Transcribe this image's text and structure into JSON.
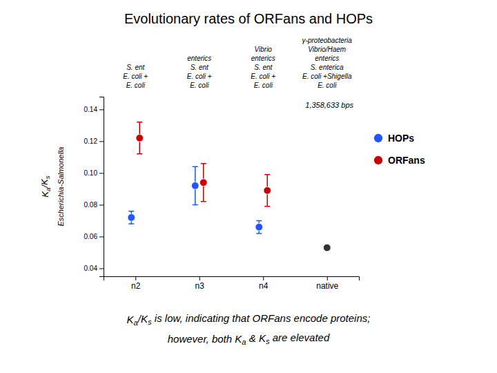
{
  "chart_data": {
    "type": "scatter",
    "title": "Evolutionary rates of ORFans and HOPs",
    "ylabel": [
      "Ka/Ks",
      "Escherichia-Salmonella"
    ],
    "categories": [
      "n2",
      "n3",
      "n4",
      "native"
    ],
    "series": [
      {
        "name": "HOPs",
        "color": "#2255ff",
        "marker": "circle",
        "values": [
          0.072,
          0.092,
          0.066,
          null
        ],
        "errors": [
          0.004,
          0.012,
          0.004,
          null
        ]
      },
      {
        "name": "ORFans",
        "color": "#cc0000",
        "marker": "circle",
        "values": [
          0.122,
          0.094,
          0.089,
          null
        ],
        "errors": [
          0.01,
          0.012,
          0.01,
          null
        ]
      },
      {
        "color": "#333333",
        "marker": "circle",
        "values": [
          null,
          null,
          null,
          0.053
        ]
      }
    ],
    "ylim": [
      0.035,
      0.148
    ],
    "yticks": [
      0.04,
      0.06,
      0.08,
      {
        "value": 0.1,
        "label": "0.10"
      },
      0.12,
      0.14
    ],
    "column_headers": [
      [
        null,
        null,
        null,
        "γ-proteobacteria"
      ],
      [
        null,
        null,
        "Vibrio",
        "Vibrio/Haem"
      ],
      [
        null,
        "enterics",
        "enterics",
        "enterics"
      ],
      [
        "S. ent",
        "S. ent",
        "S. ent",
        "S. enterica"
      ],
      [
        "E. coli +",
        "E. coli +",
        "E. coli +",
        "E. coli +Shigella"
      ],
      [
        "E. coli",
        "E. coli",
        "E. coli",
        "E. coli"
      ]
    ],
    "annotation": "1,358,633 bps",
    "caption": [
      "Ka/Ks is low, indicating that ORFans encode proteins;",
      "however, both Ka & Ks are elevated"
    ],
    "grid": false,
    "legend": "right"
  }
}
